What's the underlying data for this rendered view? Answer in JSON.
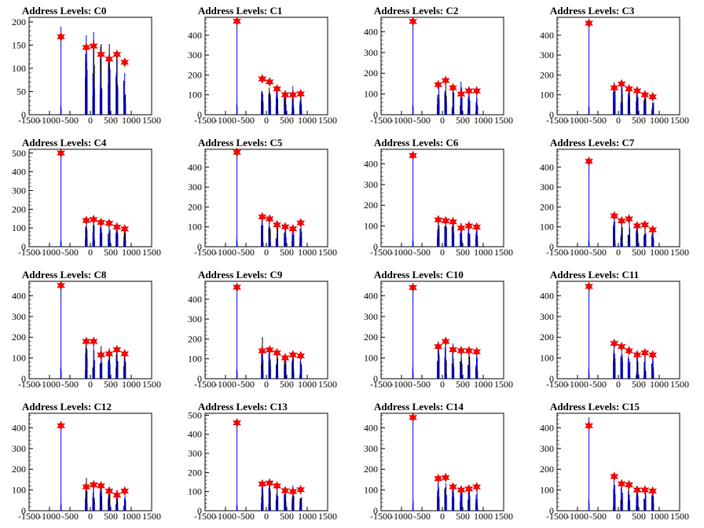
{
  "chart_data": [
    {
      "type": "bar",
      "title": "Address Levels: C0",
      "xlim": [
        -1500,
        1500
      ],
      "ylim": [
        0,
        210
      ],
      "yticks": [
        0,
        50,
        100,
        150,
        200
      ],
      "xticks": [
        -1500,
        -1000,
        -500,
        0,
        500,
        1000,
        1500
      ],
      "peaks": [
        {
          "x": -720,
          "y": 190,
          "marker": 168
        },
        {
          "x": -100,
          "y": 190,
          "marker": 145
        },
        {
          "x": 80,
          "y": 200,
          "marker": 148
        },
        {
          "x": 260,
          "y": 195,
          "marker": 130
        },
        {
          "x": 460,
          "y": 185,
          "marker": 120
        },
        {
          "x": 650,
          "y": 180,
          "marker": 130
        },
        {
          "x": 840,
          "y": 125,
          "marker": 113
        }
      ]
    },
    {
      "type": "bar",
      "title": "Address Levels: C1",
      "xlim": [
        -1500,
        1500
      ],
      "ylim": [
        0,
        490
      ],
      "yticks": [
        0,
        100,
        200,
        300,
        400
      ],
      "xticks": [
        -1500,
        -1000,
        -500,
        0,
        500,
        1000,
        1500
      ],
      "peaks": [
        {
          "x": -720,
          "y": 480,
          "marker": 470
        },
        {
          "x": -100,
          "y": 190,
          "marker": 180
        },
        {
          "x": 80,
          "y": 175,
          "marker": 165
        },
        {
          "x": 260,
          "y": 160,
          "marker": 130
        },
        {
          "x": 460,
          "y": 150,
          "marker": 100
        },
        {
          "x": 650,
          "y": 145,
          "marker": 100
        },
        {
          "x": 840,
          "y": 120,
          "marker": 105
        }
      ]
    },
    {
      "type": "bar",
      "title": "Address Levels: C2",
      "xlim": [
        -1500,
        1500
      ],
      "ylim": [
        0,
        470
      ],
      "yticks": [
        0,
        100,
        200,
        300,
        400
      ],
      "xticks": [
        -1500,
        -1000,
        -500,
        0,
        500,
        1000,
        1500
      ],
      "peaks": [
        {
          "x": -720,
          "y": 460,
          "marker": 450
        },
        {
          "x": -100,
          "y": 190,
          "marker": 145
        },
        {
          "x": 80,
          "y": 200,
          "marker": 165
        },
        {
          "x": 260,
          "y": 185,
          "marker": 130
        },
        {
          "x": 460,
          "y": 175,
          "marker": 100
        },
        {
          "x": 650,
          "y": 140,
          "marker": 115
        },
        {
          "x": 840,
          "y": 130,
          "marker": 115
        }
      ]
    },
    {
      "type": "bar",
      "title": "Address Levels: C3",
      "xlim": [
        -1500,
        1500
      ],
      "ylim": [
        0,
        490
      ],
      "yticks": [
        0,
        100,
        200,
        300,
        400
      ],
      "xticks": [
        -1500,
        -1000,
        -500,
        0,
        500,
        1000,
        1500
      ],
      "peaks": [
        {
          "x": -720,
          "y": 470,
          "marker": 460
        },
        {
          "x": -100,
          "y": 195,
          "marker": 135
        },
        {
          "x": 80,
          "y": 175,
          "marker": 155
        },
        {
          "x": 260,
          "y": 165,
          "marker": 130
        },
        {
          "x": 460,
          "y": 155,
          "marker": 120
        },
        {
          "x": 650,
          "y": 140,
          "marker": 100
        },
        {
          "x": 840,
          "y": 110,
          "marker": 90
        }
      ]
    },
    {
      "type": "bar",
      "title": "Address Levels: C4",
      "xlim": [
        -1500,
        1500
      ],
      "ylim": [
        0,
        520
      ],
      "yticks": [
        0,
        100,
        200,
        300,
        400,
        500
      ],
      "xticks": [
        -1500,
        -1000,
        -500,
        0,
        500,
        1000,
        1500
      ],
      "peaks": [
        {
          "x": -720,
          "y": 510,
          "marker": 500
        },
        {
          "x": -100,
          "y": 185,
          "marker": 140
        },
        {
          "x": 80,
          "y": 170,
          "marker": 145
        },
        {
          "x": 260,
          "y": 160,
          "marker": 130
        },
        {
          "x": 460,
          "y": 150,
          "marker": 125
        },
        {
          "x": 650,
          "y": 140,
          "marker": 105
        },
        {
          "x": 840,
          "y": 110,
          "marker": 95
        }
      ]
    },
    {
      "type": "bar",
      "title": "Address Levels: C5",
      "xlim": [
        -1500,
        1500
      ],
      "ylim": [
        0,
        490
      ],
      "yticks": [
        0,
        100,
        200,
        300,
        400
      ],
      "xticks": [
        -1500,
        -1000,
        -500,
        0,
        500,
        1000,
        1500
      ],
      "peaks": [
        {
          "x": -720,
          "y": 480,
          "marker": 475
        },
        {
          "x": -100,
          "y": 185,
          "marker": 150
        },
        {
          "x": 80,
          "y": 175,
          "marker": 140
        },
        {
          "x": 260,
          "y": 165,
          "marker": 110
        },
        {
          "x": 460,
          "y": 145,
          "marker": 100
        },
        {
          "x": 650,
          "y": 130,
          "marker": 90
        },
        {
          "x": 840,
          "y": 125,
          "marker": 120
        }
      ]
    },
    {
      "type": "bar",
      "title": "Address Levels: C6",
      "xlim": [
        -1500,
        1500
      ],
      "ylim": [
        0,
        470
      ],
      "yticks": [
        0,
        100,
        200,
        300,
        400
      ],
      "xticks": [
        -1500,
        -1000,
        -500,
        0,
        500,
        1000,
        1500
      ],
      "peaks": [
        {
          "x": -720,
          "y": 450,
          "marker": 440
        },
        {
          "x": -100,
          "y": 170,
          "marker": 130
        },
        {
          "x": 80,
          "y": 180,
          "marker": 125
        },
        {
          "x": 260,
          "y": 165,
          "marker": 120
        },
        {
          "x": 460,
          "y": 145,
          "marker": 90
        },
        {
          "x": 650,
          "y": 135,
          "marker": 100
        },
        {
          "x": 840,
          "y": 115,
          "marker": 95
        }
      ]
    },
    {
      "type": "bar",
      "title": "Address Levels: C7",
      "xlim": [
        -1500,
        1500
      ],
      "ylim": [
        0,
        490
      ],
      "yticks": [
        0,
        100,
        200,
        300,
        400
      ],
      "xticks": [
        -1500,
        -1000,
        -500,
        0,
        500,
        1000,
        1500
      ],
      "peaks": [
        {
          "x": -720,
          "y": 440,
          "marker": 430
        },
        {
          "x": -100,
          "y": 175,
          "marker": 155
        },
        {
          "x": 80,
          "y": 160,
          "marker": 130
        },
        {
          "x": 260,
          "y": 150,
          "marker": 140
        },
        {
          "x": 460,
          "y": 145,
          "marker": 105
        },
        {
          "x": 650,
          "y": 130,
          "marker": 110
        },
        {
          "x": 840,
          "y": 100,
          "marker": 85
        }
      ]
    },
    {
      "type": "bar",
      "title": "Address Levels: C8",
      "xlim": [
        -1500,
        1500
      ],
      "ylim": [
        0,
        470
      ],
      "yticks": [
        0,
        100,
        200,
        300,
        400
      ],
      "xticks": [
        -1500,
        -1000,
        -500,
        0,
        500,
        1000,
        1500
      ],
      "peaks": [
        {
          "x": -720,
          "y": 460,
          "marker": 450
        },
        {
          "x": -100,
          "y": 205,
          "marker": 180
        },
        {
          "x": 80,
          "y": 215,
          "marker": 180
        },
        {
          "x": 260,
          "y": 180,
          "marker": 115
        },
        {
          "x": 460,
          "y": 160,
          "marker": 120
        },
        {
          "x": 650,
          "y": 150,
          "marker": 140
        },
        {
          "x": 840,
          "y": 140,
          "marker": 120
        }
      ]
    },
    {
      "type": "bar",
      "title": "Address Levels: C9",
      "xlim": [
        -1500,
        1500
      ],
      "ylim": [
        0,
        490
      ],
      "yticks": [
        0,
        100,
        200,
        300,
        400
      ],
      "xticks": [
        -1500,
        -1000,
        -500,
        0,
        500,
        1000,
        1500
      ],
      "peaks": [
        {
          "x": -720,
          "y": 470,
          "marker": 460
        },
        {
          "x": -100,
          "y": 230,
          "marker": 140
        },
        {
          "x": 80,
          "y": 200,
          "marker": 145
        },
        {
          "x": 260,
          "y": 175,
          "marker": 130
        },
        {
          "x": 460,
          "y": 160,
          "marker": 105
        },
        {
          "x": 650,
          "y": 145,
          "marker": 120
        },
        {
          "x": 840,
          "y": 130,
          "marker": 115
        }
      ]
    },
    {
      "type": "bar",
      "title": "Address Levels: C10",
      "xlim": [
        -1500,
        1500
      ],
      "ylim": [
        0,
        470
      ],
      "yticks": [
        0,
        100,
        200,
        300,
        400
      ],
      "xticks": [
        -1500,
        -1000,
        -500,
        0,
        500,
        1000,
        1500
      ],
      "peaks": [
        {
          "x": -720,
          "y": 450,
          "marker": 440
        },
        {
          "x": -100,
          "y": 200,
          "marker": 155
        },
        {
          "x": 80,
          "y": 215,
          "marker": 180
        },
        {
          "x": 260,
          "y": 195,
          "marker": 140
        },
        {
          "x": 460,
          "y": 180,
          "marker": 135
        },
        {
          "x": 650,
          "y": 165,
          "marker": 135
        },
        {
          "x": 840,
          "y": 150,
          "marker": 130
        }
      ]
    },
    {
      "type": "bar",
      "title": "Address Levels: C11",
      "xlim": [
        -1500,
        1500
      ],
      "ylim": [
        0,
        470
      ],
      "yticks": [
        0,
        100,
        200,
        300,
        400
      ],
      "xticks": [
        -1500,
        -1000,
        -500,
        0,
        500,
        1000,
        1500
      ],
      "peaks": [
        {
          "x": -720,
          "y": 455,
          "marker": 445
        },
        {
          "x": -100,
          "y": 220,
          "marker": 170
        },
        {
          "x": 80,
          "y": 200,
          "marker": 155
        },
        {
          "x": 260,
          "y": 175,
          "marker": 135
        },
        {
          "x": 460,
          "y": 165,
          "marker": 115
        },
        {
          "x": 650,
          "y": 150,
          "marker": 125
        },
        {
          "x": 840,
          "y": 130,
          "marker": 115
        }
      ]
    },
    {
      "type": "bar",
      "title": "Address Levels: C12",
      "xlim": [
        -1500,
        1500
      ],
      "ylim": [
        0,
        470
      ],
      "yticks": [
        0,
        100,
        200,
        300,
        400
      ],
      "xticks": [
        -1500,
        -1000,
        -500,
        0,
        500,
        1000,
        1500
      ],
      "peaks": [
        {
          "x": -720,
          "y": 420,
          "marker": 410
        },
        {
          "x": -100,
          "y": 175,
          "marker": 115
        },
        {
          "x": 80,
          "y": 165,
          "marker": 125
        },
        {
          "x": 260,
          "y": 150,
          "marker": 120
        },
        {
          "x": 460,
          "y": 130,
          "marker": 95
        },
        {
          "x": 650,
          "y": 125,
          "marker": 75
        },
        {
          "x": 840,
          "y": 110,
          "marker": 95
        }
      ]
    },
    {
      "type": "bar",
      "title": "Address Levels: C13",
      "xlim": [
        -1500,
        1500
      ],
      "ylim": [
        0,
        510
      ],
      "yticks": [
        0,
        100,
        200,
        300,
        400,
        500
      ],
      "xticks": [
        -1500,
        -1000,
        -500,
        0,
        500,
        1000,
        1500
      ],
      "peaks": [
        {
          "x": -720,
          "y": 470,
          "marker": 460
        },
        {
          "x": -100,
          "y": 180,
          "marker": 140
        },
        {
          "x": 80,
          "y": 170,
          "marker": 145
        },
        {
          "x": 260,
          "y": 160,
          "marker": 130
        },
        {
          "x": 460,
          "y": 140,
          "marker": 105
        },
        {
          "x": 650,
          "y": 135,
          "marker": 100
        },
        {
          "x": 840,
          "y": 120,
          "marker": 110
        }
      ]
    },
    {
      "type": "bar",
      "title": "Address Levels: C14",
      "xlim": [
        -1500,
        1500
      ],
      "ylim": [
        0,
        470
      ],
      "yticks": [
        0,
        100,
        200,
        300,
        400
      ],
      "xticks": [
        -1500,
        -1000,
        -500,
        0,
        500,
        1000,
        1500
      ],
      "peaks": [
        {
          "x": -720,
          "y": 460,
          "marker": 450
        },
        {
          "x": -100,
          "y": 190,
          "marker": 155
        },
        {
          "x": 80,
          "y": 185,
          "marker": 160
        },
        {
          "x": 260,
          "y": 160,
          "marker": 115
        },
        {
          "x": 460,
          "y": 150,
          "marker": 100
        },
        {
          "x": 650,
          "y": 135,
          "marker": 105
        },
        {
          "x": 840,
          "y": 125,
          "marker": 115
        }
      ]
    },
    {
      "type": "bar",
      "title": "Address Levels: C15",
      "xlim": [
        -1500,
        1500
      ],
      "ylim": [
        0,
        470
      ],
      "yticks": [
        0,
        100,
        200,
        300,
        400
      ],
      "xticks": [
        -1500,
        -1000,
        -500,
        0,
        500,
        1000,
        1500
      ],
      "peaks": [
        {
          "x": -720,
          "y": 450,
          "marker": 410
        },
        {
          "x": -100,
          "y": 175,
          "marker": 165
        },
        {
          "x": 80,
          "y": 165,
          "marker": 130
        },
        {
          "x": 260,
          "y": 155,
          "marker": 125
        },
        {
          "x": 460,
          "y": 140,
          "marker": 100
        },
        {
          "x": 650,
          "y": 130,
          "marker": 100
        },
        {
          "x": 840,
          "y": 120,
          "marker": 95
        }
      ]
    }
  ],
  "colors": {
    "bars": "#0000ee",
    "bars_dark": "#000000",
    "marker": "#ff0000"
  }
}
